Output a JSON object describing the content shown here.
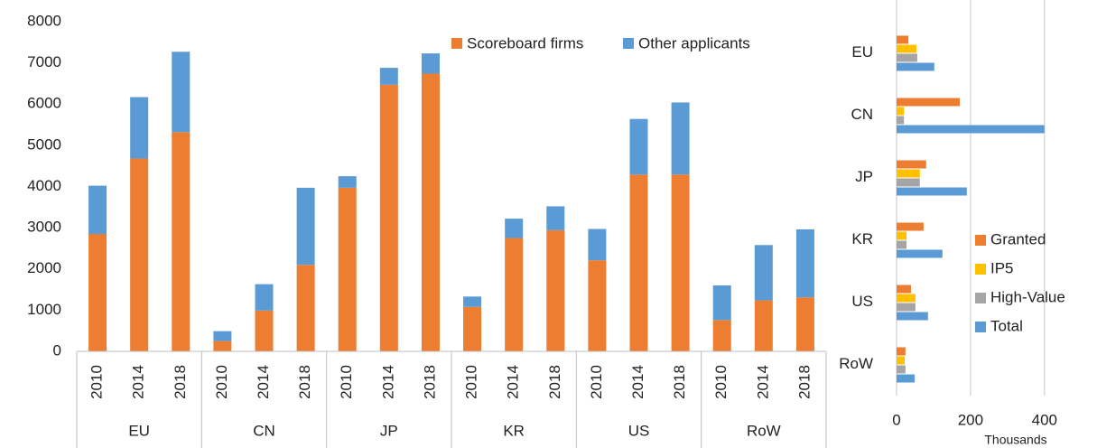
{
  "chart_data": [
    {
      "type": "stacked_bar",
      "categories": [
        "2010",
        "2014",
        "2018",
        "2010",
        "2014",
        "2018",
        "2010",
        "2014",
        "2018",
        "2010",
        "2014",
        "2018",
        "2010",
        "2014",
        "2018",
        "2010",
        "2014",
        "2018"
      ],
      "groups": [
        "EU",
        "CN",
        "JP",
        "KR",
        "US",
        "RoW"
      ],
      "series": [
        {
          "name": "Scoreboard firms",
          "color": "#ed7d31",
          "values": [
            2850,
            4680,
            5320,
            250,
            990,
            2100,
            3970,
            6470,
            6740,
            1080,
            2750,
            2940,
            2210,
            4290,
            4290,
            760,
            1240,
            1310
          ]
        },
        {
          "name": "Other applicants",
          "color": "#5b9bd5",
          "values": [
            1170,
            1490,
            1950,
            240,
            640,
            1870,
            280,
            410,
            490,
            250,
            470,
            580,
            760,
            1350,
            1750,
            840,
            1340,
            1650
          ]
        }
      ],
      "ylim": [
        0,
        8000
      ],
      "yticks": [
        0,
        1000,
        2000,
        3000,
        4000,
        5000,
        6000,
        7000,
        8000
      ],
      "grid": false,
      "legend": "top-right"
    },
    {
      "type": "hbar",
      "categories": [
        "EU",
        "CN",
        "JP",
        "KR",
        "US",
        "RoW"
      ],
      "series": [
        {
          "name": "Granted",
          "color": "#ed7d31",
          "values": [
            32,
            171,
            80,
            73,
            39,
            24
          ]
        },
        {
          "name": "IP5",
          "color": "#ffc000",
          "values": [
            54,
            20,
            63,
            27,
            51,
            22
          ]
        },
        {
          "name": "High-Value",
          "color": "#a5a5a5",
          "values": [
            56,
            20,
            63,
            27,
            51,
            24
          ]
        },
        {
          "name": "Total",
          "color": "#5b9bd5",
          "values": [
            102,
            400,
            190,
            124,
            85,
            49
          ]
        }
      ],
      "xlim": [
        0,
        420
      ],
      "xticks": [
        0,
        200,
        400
      ],
      "xlabel": "Thousands",
      "grid": true,
      "legend": "bottom-right"
    }
  ]
}
